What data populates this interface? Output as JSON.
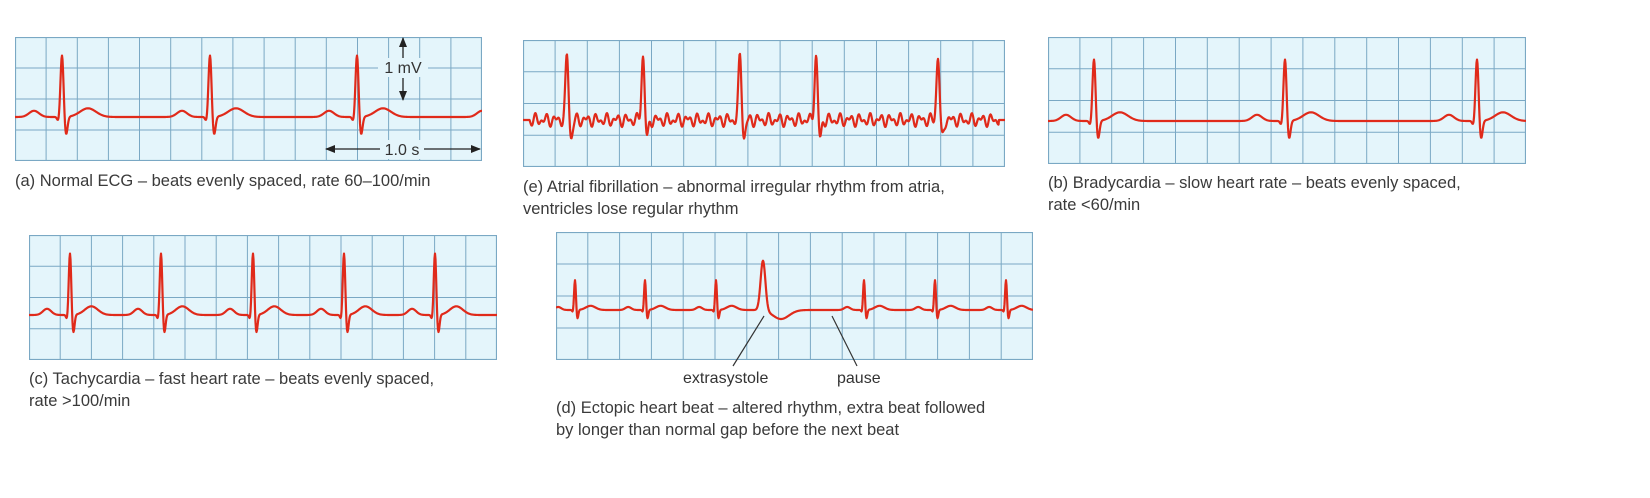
{
  "colors": {
    "paper": "#e4f5fb",
    "grid": "#7aa8c4",
    "trace": "#e02a1a",
    "text": "#3a3a3a"
  },
  "panels": [
    {
      "id": "a",
      "rhythm": "normal",
      "caption": [
        "(a) Normal ECG – beats evenly spaced, rate 60–100/min"
      ]
    },
    {
      "id": "e",
      "rhythm": "atrial-fibrillation",
      "caption": [
        "(e) Atrial fibrillation – abnormal irregular rhythm from atria,",
        "ventricles lose regular rhythm"
      ]
    },
    {
      "id": "b",
      "rhythm": "bradycardia",
      "caption": [
        "(b) Bradycardia – slow heart rate – beats evenly spaced,",
        "rate <60/min"
      ]
    },
    {
      "id": "c",
      "rhythm": "tachycardia",
      "caption": [
        "(c) Tachycardia – fast heart rate – beats evenly spaced,",
        "rate >100/min"
      ]
    },
    {
      "id": "d",
      "rhythm": "ectopic",
      "caption": [
        "(d) Ectopic heart beat – altered rhythm, extra beat followed",
        "by longer than normal gap before the next beat"
      ]
    }
  ],
  "scale": {
    "voltage_label": "1 mV",
    "time_label": "1.0 s"
  },
  "annotations": {
    "extrasystole": "extrasystole",
    "pause": "pause"
  }
}
